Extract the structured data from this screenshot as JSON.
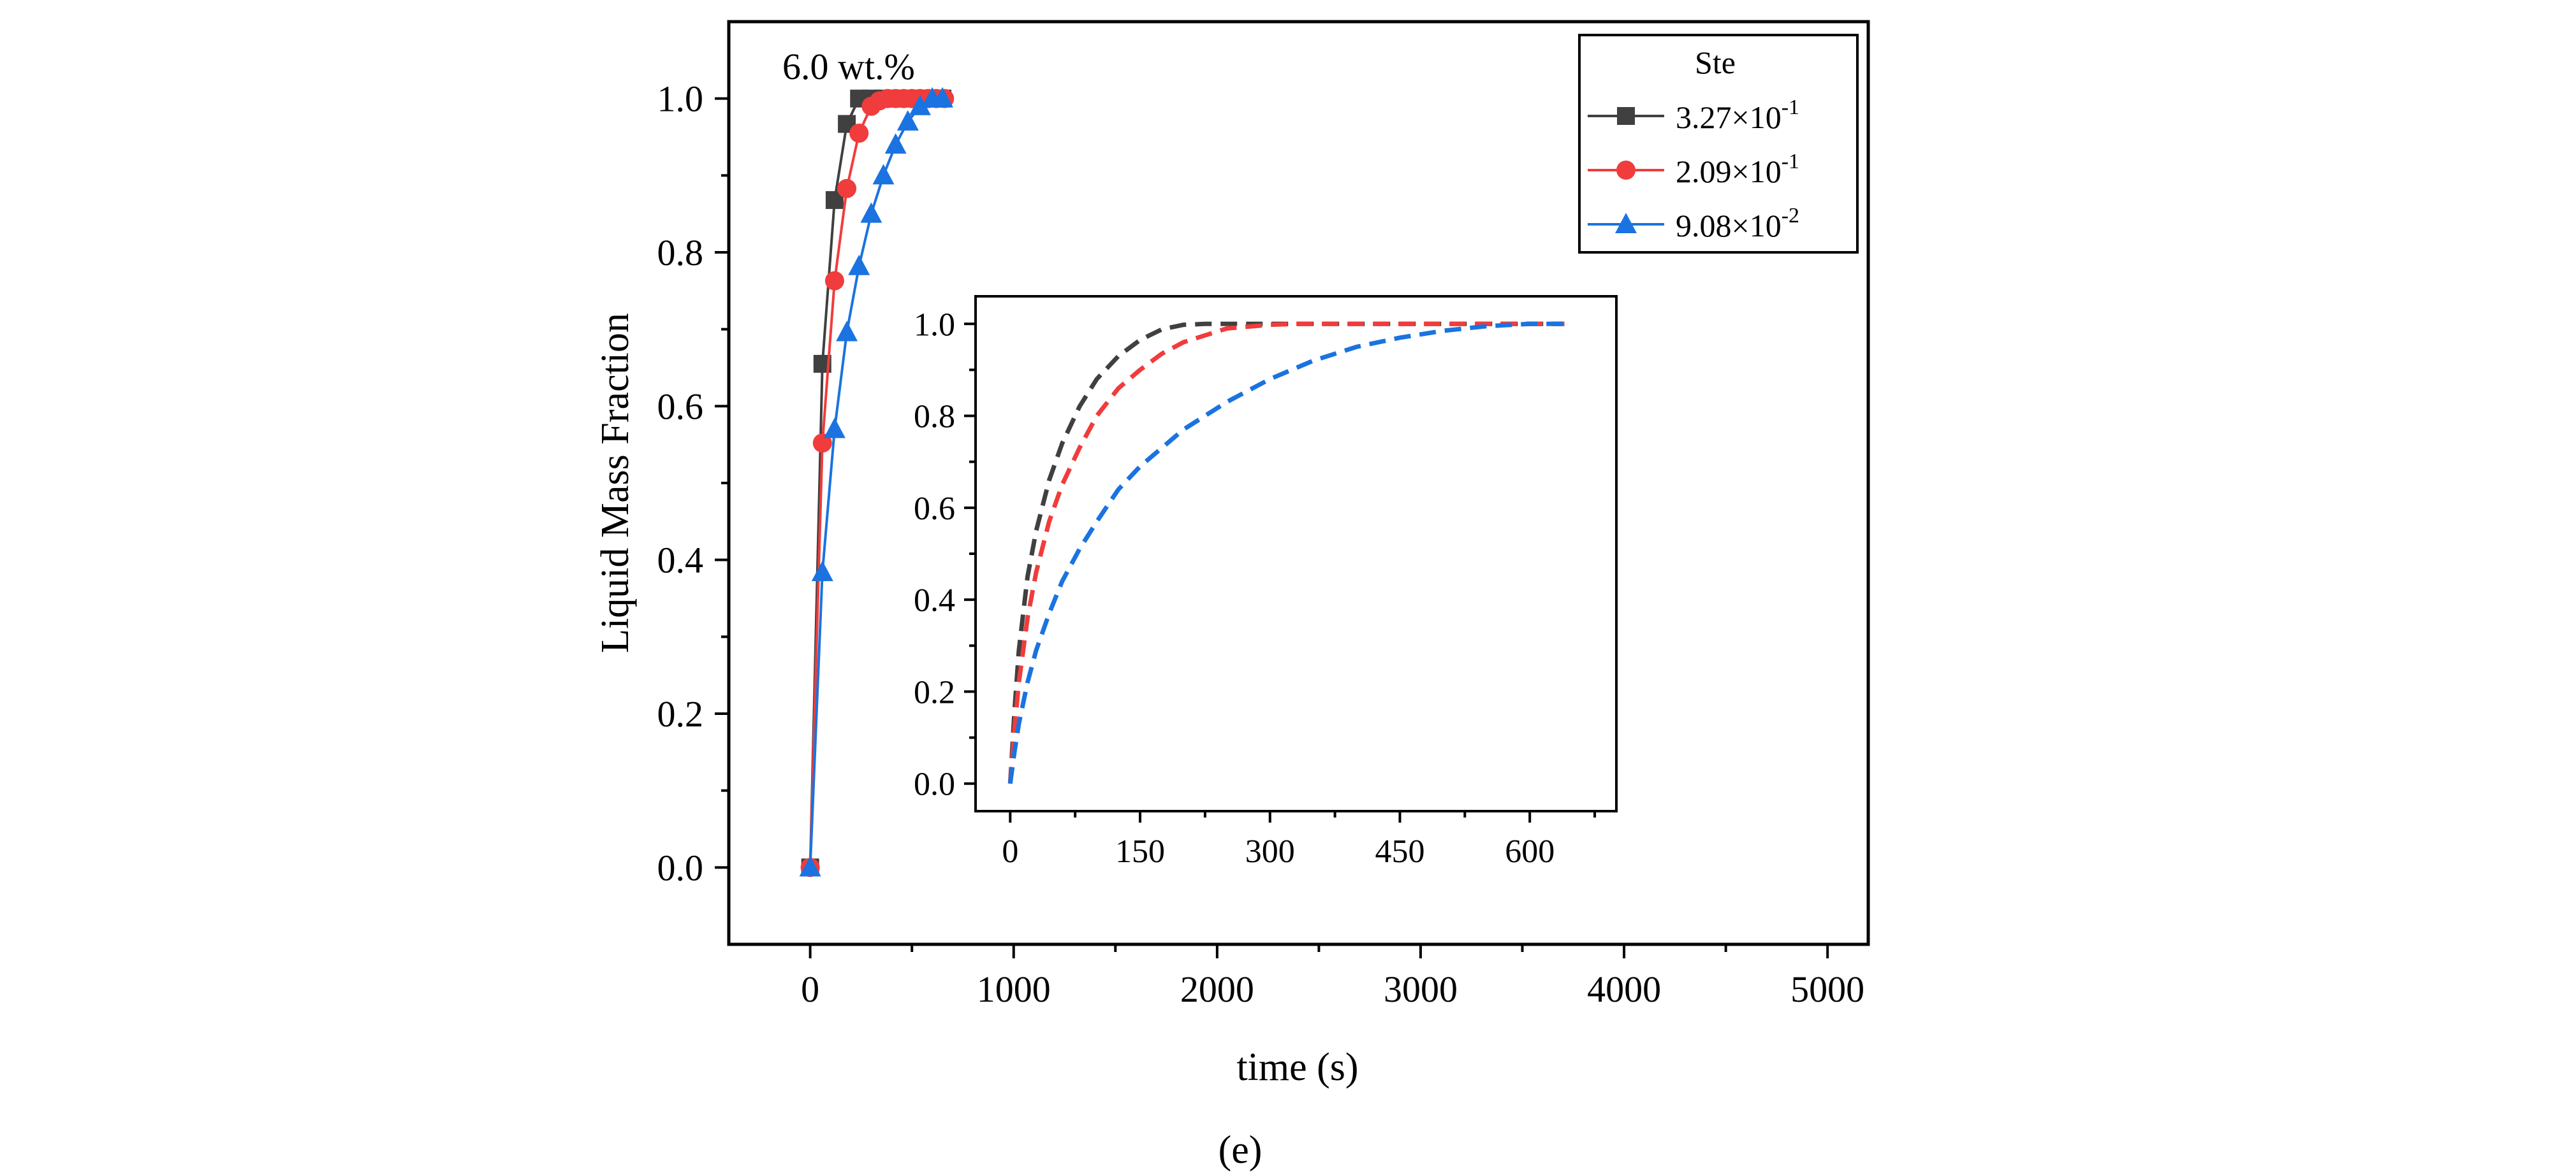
{
  "chart_data": [
    {
      "id": "main",
      "type": "line",
      "annotation": "6.0 wt.%",
      "xlabel": "time (s)",
      "ylabel": "Liquid Mass Fraction",
      "xlim": [
        -400,
        5200
      ],
      "ylim": [
        -0.1,
        1.1
      ],
      "xticks": [
        0,
        1000,
        2000,
        3000,
        4000,
        5000
      ],
      "yticks": [
        0.0,
        0.2,
        0.4,
        0.6,
        0.8,
        1.0
      ],
      "xtick_labels": [
        "0",
        "1000",
        "2000",
        "3000",
        "4000",
        "5000"
      ],
      "ytick_labels": [
        "0.0",
        "0.2",
        "0.4",
        "0.6",
        "0.8",
        "1.0"
      ],
      "legend": {
        "title": "Ste",
        "position": "top-right",
        "entries": [
          {
            "base": "3.27×10",
            "exp": "-1"
          },
          {
            "base": "2.09×10",
            "exp": "-1"
          },
          {
            "base": "9.08×10",
            "exp": "-2"
          }
        ]
      },
      "series": [
        {
          "name": "3.27×10^-1",
          "color": "#404040",
          "marker": "square",
          "x": [
            0,
            60,
            120,
            180,
            240,
            300,
            360,
            420,
            480,
            540,
            600,
            650
          ],
          "y": [
            0.0,
            0.655,
            0.868,
            0.967,
            1.0,
            1.0,
            1.0,
            1.0,
            1.0,
            1.0,
            1.0,
            1.0
          ]
        },
        {
          "name": "2.09×10^-1",
          "color": "#f03c3c",
          "marker": "circle",
          "x": [
            0,
            60,
            120,
            180,
            240,
            300,
            340,
            380,
            420,
            460,
            500,
            540,
            580,
            620,
            660
          ],
          "y": [
            0.0,
            0.552,
            0.763,
            0.883,
            0.955,
            0.99,
            0.997,
            1.0,
            1.0,
            1.0,
            1.0,
            1.0,
            1.0,
            1.0,
            1.0
          ]
        },
        {
          "name": "9.08×10^-2",
          "color": "#1a73e0",
          "marker": "triangle",
          "x": [
            0,
            60,
            120,
            180,
            240,
            300,
            360,
            420,
            480,
            540,
            600,
            650
          ],
          "y": [
            0.0,
            0.384,
            0.57,
            0.696,
            0.782,
            0.85,
            0.9,
            0.94,
            0.97,
            0.99,
            1.0,
            1.0
          ]
        }
      ]
    },
    {
      "id": "inset",
      "type": "line",
      "style": "dashed",
      "xlim": [
        -40,
        700
      ],
      "ylim": [
        -0.06,
        1.06
      ],
      "xticks": [
        0,
        150,
        300,
        450,
        600
      ],
      "yticks": [
        0.0,
        0.2,
        0.4,
        0.6,
        0.8,
        1.0
      ],
      "xtick_labels": [
        "0",
        "150",
        "300",
        "450",
        "600"
      ],
      "ytick_labels": [
        "0.0",
        "0.2",
        "0.4",
        "0.6",
        "0.8",
        "1.0"
      ],
      "series": [
        {
          "name": "3.27×10^-1",
          "color": "#404040",
          "x": [
            0,
            5,
            10,
            20,
            30,
            45,
            60,
            80,
            100,
            125,
            150,
            175,
            200,
            225,
            250,
            300,
            400,
            500,
            600,
            640
          ],
          "y": [
            0.0,
            0.16,
            0.29,
            0.45,
            0.55,
            0.66,
            0.74,
            0.82,
            0.88,
            0.93,
            0.965,
            0.988,
            0.998,
            1.0,
            1.0,
            1.0,
            1.0,
            1.0,
            1.0,
            1.0
          ]
        },
        {
          "name": "2.09×10^-1",
          "color": "#f03c3c",
          "x": [
            0,
            5,
            10,
            20,
            30,
            45,
            60,
            80,
            100,
            125,
            150,
            175,
            200,
            250,
            300,
            330,
            400,
            500,
            600,
            640
          ],
          "y": [
            0.0,
            0.12,
            0.22,
            0.36,
            0.46,
            0.57,
            0.65,
            0.73,
            0.8,
            0.86,
            0.9,
            0.935,
            0.96,
            0.99,
            0.998,
            1.0,
            1.0,
            1.0,
            1.0,
            1.0
          ]
        },
        {
          "name": "9.08×10^-2",
          "color": "#1a73e0",
          "x": [
            0,
            5,
            10,
            20,
            30,
            45,
            60,
            80,
            100,
            125,
            150,
            200,
            250,
            300,
            350,
            400,
            450,
            500,
            550,
            600,
            640
          ],
          "y": [
            0.0,
            0.07,
            0.13,
            0.22,
            0.29,
            0.37,
            0.44,
            0.51,
            0.57,
            0.64,
            0.69,
            0.77,
            0.83,
            0.88,
            0.92,
            0.95,
            0.97,
            0.985,
            0.995,
            1.0,
            1.0
          ]
        }
      ]
    }
  ],
  "figure_label": "(e)"
}
